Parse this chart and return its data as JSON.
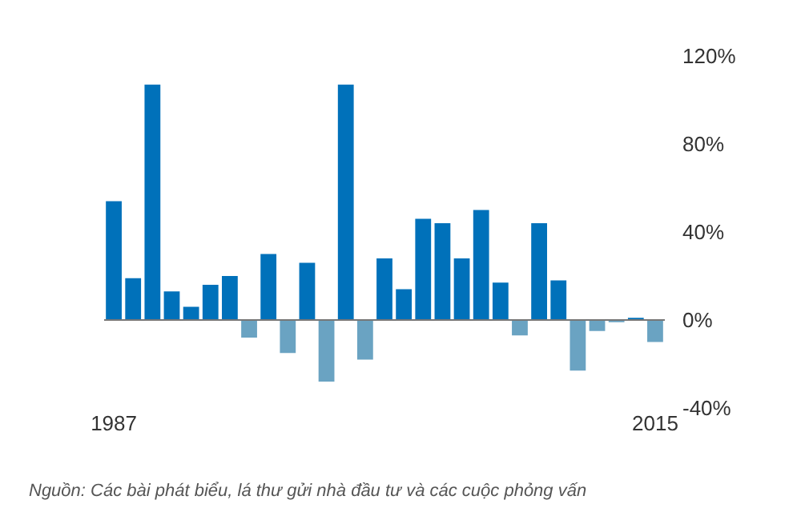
{
  "chart_data": {
    "type": "bar",
    "categories": [
      "1987",
      null,
      null,
      null,
      null,
      null,
      null,
      null,
      null,
      null,
      null,
      null,
      null,
      null,
      null,
      null,
      null,
      null,
      null,
      null,
      null,
      null,
      null,
      null,
      null,
      null,
      null,
      null,
      "2015"
    ],
    "values": [
      54,
      19,
      107,
      13,
      6,
      16,
      20,
      -8,
      30,
      -15,
      26,
      -28,
      107,
      -18,
      28,
      14,
      46,
      44,
      28,
      50,
      17,
      -7,
      44,
      18,
      -23,
      -5,
      -1,
      1,
      -10
    ],
    "colors": [
      "#0071ba",
      "#0071ba",
      "#0071ba",
      "#0071ba",
      "#0071ba",
      "#0071ba",
      "#0071ba",
      "#6aa3c2",
      "#0071ba",
      "#6aa3c2",
      "#0071ba",
      "#6aa3c2",
      "#0071ba",
      "#6aa3c2",
      "#0071ba",
      "#0071ba",
      "#0071ba",
      "#0071ba",
      "#0071ba",
      "#0071ba",
      "#0071ba",
      "#6aa3c2",
      "#0071ba",
      "#0071ba",
      "#6aa3c2",
      "#6aa3c2",
      "#6aa3c2",
      "#0071ba",
      "#6aa3c2"
    ],
    "ylim": [
      -40,
      120
    ],
    "yticks": [
      {
        "value": -40,
        "label": "-40%"
      },
      {
        "value": 0,
        "label": "0%"
      },
      {
        "value": 40,
        "label": "40%"
      },
      {
        "value": 80,
        "label": "80%"
      },
      {
        "value": 120,
        "label": "120%"
      }
    ],
    "ref_lines": [
      {
        "axis": "y",
        "value": 0,
        "color": "#777777"
      }
    ],
    "annotations": [
      "Nguồn: Các bài phát biểu, lá thư gửi nhà đầu tư và các cuộc phỏng vấn"
    ]
  }
}
